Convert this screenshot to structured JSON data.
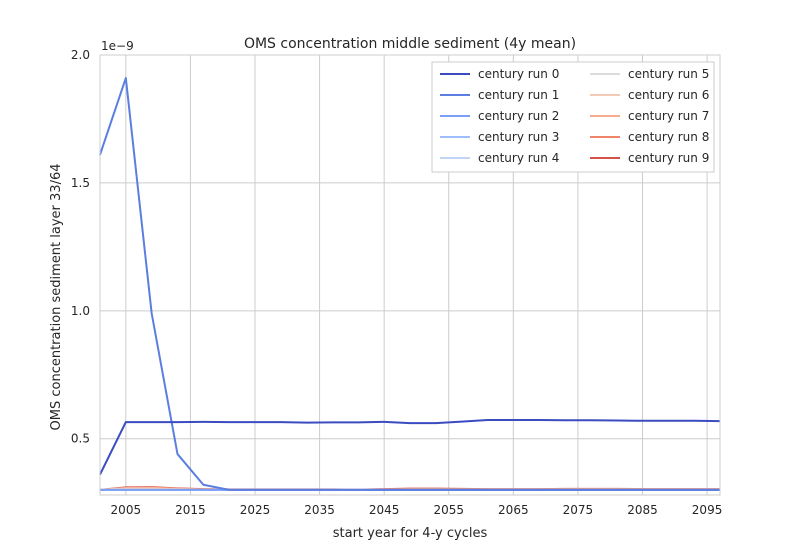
{
  "chart_data": {
    "type": "line",
    "title": "OMS concentration middle sediment (4y mean)",
    "xlabel": "start year for 4-y cycles",
    "ylabel": "OMS concentration sediment layer 33/64",
    "y_offset_label": "1e−9",
    "xlim": [
      2001,
      2097
    ],
    "ylim": [
      0.28,
      2.0
    ],
    "x_ticks": [
      2005,
      2015,
      2025,
      2035,
      2045,
      2055,
      2065,
      2075,
      2085,
      2095
    ],
    "y_ticks": [
      0.5,
      1.0,
      1.5,
      2.0
    ],
    "y_tick_labels": [
      "0.5",
      "1.0",
      "1.5",
      "2.0"
    ],
    "grid": true,
    "legend_position": "top-right",
    "x": [
      2001,
      2005,
      2009,
      2013,
      2017,
      2021,
      2025,
      2029,
      2033,
      2037,
      2041,
      2045,
      2049,
      2053,
      2057,
      2061,
      2065,
      2069,
      2073,
      2077,
      2081,
      2085,
      2089,
      2093,
      2097
    ],
    "series": [
      {
        "name": "century run 0",
        "color": "#3b4cc0",
        "values": [
          0.36,
          0.565,
          0.565,
          0.565,
          0.566,
          0.565,
          0.565,
          0.565,
          0.563,
          0.564,
          0.564,
          0.566,
          0.561,
          0.561,
          0.567,
          0.573,
          0.573,
          0.573,
          0.572,
          0.572,
          0.571,
          0.57,
          0.57,
          0.57,
          0.569
        ]
      },
      {
        "name": "century run 1",
        "color": "#5b7ee0",
        "values": [
          1.61,
          1.91,
          0.99,
          0.44,
          0.32,
          0.3,
          0.3,
          0.3,
          0.3,
          0.3,
          0.3,
          0.3,
          0.3,
          0.3,
          0.3,
          0.3,
          0.3,
          0.3,
          0.3,
          0.3,
          0.3,
          0.3,
          0.3,
          0.3,
          0.3
        ]
      },
      {
        "name": "century run 2",
        "color": "#7b9ff9",
        "values": [
          0.3,
          0.3,
          0.3,
          0.3,
          0.3,
          0.3,
          0.3,
          0.3,
          0.3,
          0.3,
          0.3,
          0.3,
          0.3,
          0.3,
          0.3,
          0.3,
          0.3,
          0.3,
          0.3,
          0.3,
          0.3,
          0.3,
          0.3,
          0.3,
          0.3
        ]
      },
      {
        "name": "century run 3",
        "color": "#9ebeff",
        "values": [
          0.3,
          0.3,
          0.3,
          0.3,
          0.3,
          0.3,
          0.3,
          0.3,
          0.3,
          0.3,
          0.3,
          0.3,
          0.3,
          0.3,
          0.3,
          0.3,
          0.3,
          0.3,
          0.3,
          0.3,
          0.3,
          0.3,
          0.3,
          0.3,
          0.3
        ]
      },
      {
        "name": "century run 4",
        "color": "#c0d4f5",
        "values": [
          0.3,
          0.3,
          0.3,
          0.3,
          0.3,
          0.3,
          0.3,
          0.3,
          0.3,
          0.3,
          0.3,
          0.3,
          0.3,
          0.3,
          0.3,
          0.3,
          0.3,
          0.3,
          0.3,
          0.3,
          0.3,
          0.3,
          0.3,
          0.3,
          0.3
        ]
      },
      {
        "name": "century run 5",
        "color": "#dddcdc",
        "values": [
          0.3,
          0.3,
          0.3,
          0.3,
          0.3,
          0.3,
          0.3,
          0.3,
          0.3,
          0.3,
          0.3,
          0.3,
          0.3,
          0.3,
          0.3,
          0.3,
          0.3,
          0.3,
          0.3,
          0.3,
          0.3,
          0.3,
          0.3,
          0.3,
          0.3
        ]
      },
      {
        "name": "century run 6",
        "color": "#f2cbb7",
        "values": [
          0.3,
          0.305,
          0.305,
          0.302,
          0.3,
          0.3,
          0.3,
          0.3,
          0.3,
          0.3,
          0.3,
          0.3,
          0.3,
          0.3,
          0.3,
          0.3,
          0.3,
          0.3,
          0.3,
          0.3,
          0.3,
          0.3,
          0.3,
          0.3,
          0.3
        ]
      },
      {
        "name": "century run 7",
        "color": "#f7ac8e",
        "values": [
          0.3,
          0.307,
          0.308,
          0.304,
          0.301,
          0.3,
          0.3,
          0.3,
          0.3,
          0.3,
          0.3,
          0.301,
          0.302,
          0.302,
          0.302,
          0.302,
          0.302,
          0.302,
          0.302,
          0.302,
          0.302,
          0.302,
          0.302,
          0.302,
          0.302
        ]
      },
      {
        "name": "century run 8",
        "color": "#ee8468",
        "values": [
          0.3,
          0.308,
          0.309,
          0.305,
          0.302,
          0.301,
          0.301,
          0.301,
          0.301,
          0.301,
          0.301,
          0.302,
          0.303,
          0.303,
          0.302,
          0.302,
          0.302,
          0.302,
          0.303,
          0.303,
          0.303,
          0.302,
          0.302,
          0.302,
          0.302
        ]
      },
      {
        "name": "century run 9",
        "color": "#d65244",
        "values": [
          0.3,
          0.31,
          0.311,
          0.306,
          0.303,
          0.302,
          0.302,
          0.302,
          0.302,
          0.302,
          0.301,
          0.303,
          0.305,
          0.305,
          0.304,
          0.303,
          0.303,
          0.303,
          0.304,
          0.304,
          0.304,
          0.303,
          0.303,
          0.303,
          0.303
        ]
      }
    ]
  }
}
